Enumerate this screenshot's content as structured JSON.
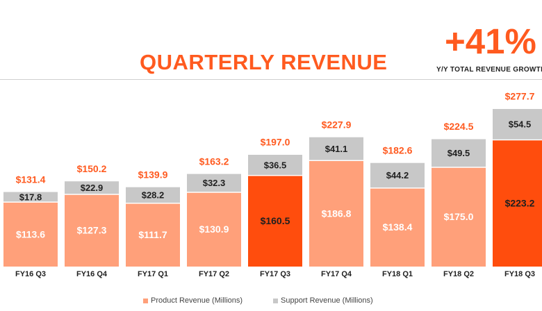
{
  "header": {
    "title": "QUARTERLY REVENUE",
    "kpi_value": "+41%",
    "kpi_label": "Y/Y TOTAL REVENUE GROWTH"
  },
  "colors": {
    "accent": "#ff5a1f",
    "product": "#ffa07a",
    "product_highlight": "#ff4d0d",
    "support": "#c8c8c8",
    "total_label": "#ff5a1f"
  },
  "legend": {
    "product": "Product Revenue (Millions)",
    "support": "Support Revenue (Millions)"
  },
  "chart_data": {
    "type": "bar",
    "stacked": true,
    "categories": [
      "FY16 Q3",
      "FY16 Q4",
      "FY17 Q1",
      "FY17 Q2",
      "FY17 Q3",
      "FY17 Q4",
      "FY18 Q1",
      "FY18 Q2",
      "FY18 Q3"
    ],
    "series": [
      {
        "name": "Product Revenue (Millions)",
        "values": [
          113.6,
          127.3,
          111.7,
          130.9,
          160.5,
          186.8,
          138.4,
          175.0,
          223.2
        ],
        "labels": [
          "$113.6",
          "$127.3",
          "$111.7",
          "$130.9",
          "$160.5",
          "$186.8",
          "$138.4",
          "$175.0",
          "$223.2"
        ]
      },
      {
        "name": "Support Revenue (Millions)",
        "values": [
          17.8,
          22.9,
          28.2,
          32.3,
          36.5,
          41.1,
          44.2,
          49.5,
          54.5
        ],
        "labels": [
          "$17.8",
          "$22.9",
          "$28.2",
          "$32.3",
          "$36.5",
          "$41.1",
          "$44.2",
          "$49.5",
          "$54.5"
        ]
      }
    ],
    "totals": [
      131.4,
      150.2,
      139.9,
      163.2,
      197.0,
      227.9,
      182.6,
      224.5,
      277.7
    ],
    "total_labels": [
      "$131.4",
      "$150.2",
      "$139.9",
      "$163.2",
      "$197.0",
      "$227.9",
      "$182.6",
      "$224.5",
      "$277.7"
    ],
    "highlight_q3": [
      false,
      false,
      false,
      false,
      true,
      false,
      false,
      false,
      true
    ],
    "ylim": [
      0,
      277.7
    ],
    "grid": false,
    "legend_position": "bottom"
  }
}
